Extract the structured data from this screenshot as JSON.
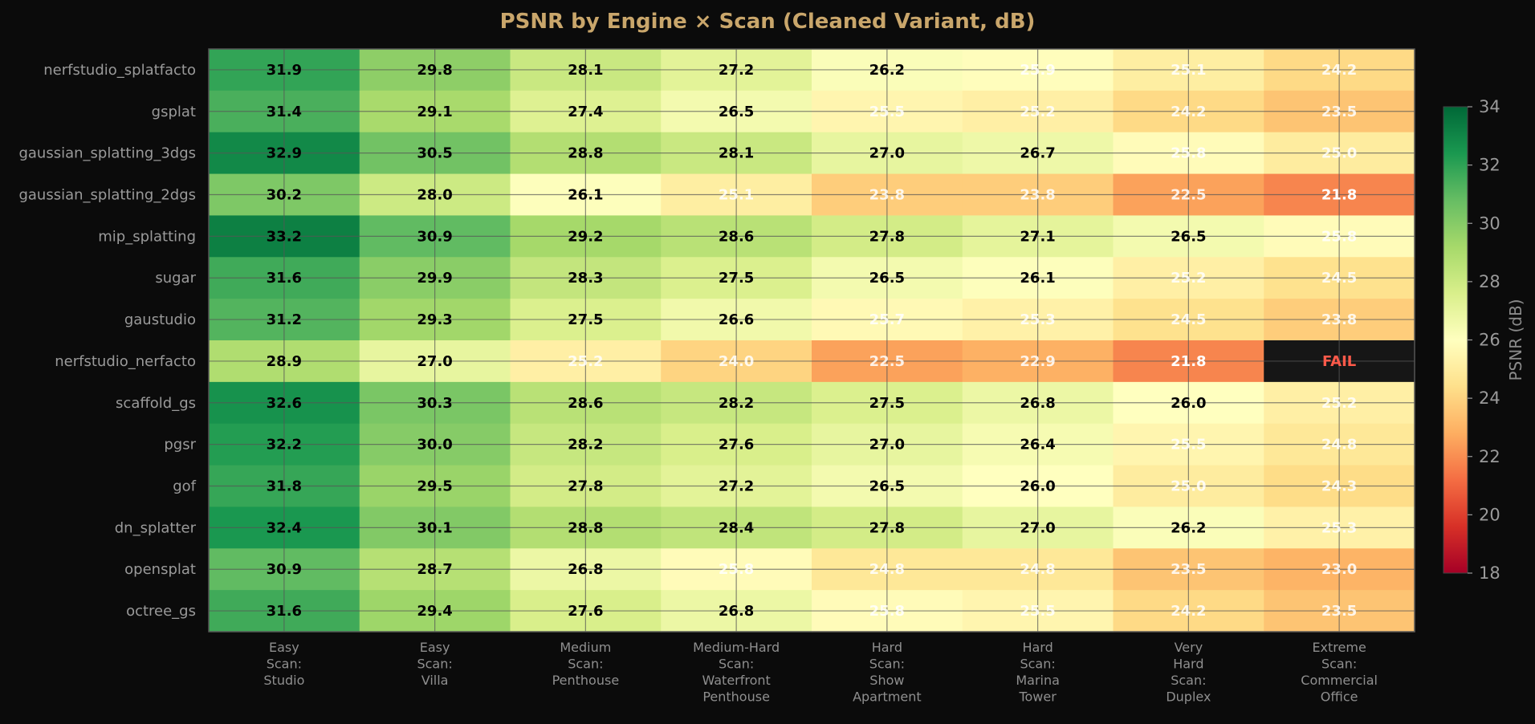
{
  "chart_data": {
    "type": "heatmap",
    "title": "PSNR by Engine × Scan (Cleaned Variant, dB)",
    "rows": [
      "nerfstudio_splatfacto",
      "gsplat",
      "gaussian_splatting_3dgs",
      "gaussian_splatting_2dgs",
      "mip_splatting",
      "sugar",
      "gaustudio",
      "nerfstudio_nerfacto",
      "scaffold_gs",
      "pgsr",
      "gof",
      "dn_splatter",
      "opensplat",
      "octree_gs"
    ],
    "columns": [
      [
        "Easy",
        "Scan:",
        "Studio"
      ],
      [
        "Easy",
        "Scan:",
        "Villa"
      ],
      [
        "Medium",
        "Scan:",
        "Penthouse"
      ],
      [
        "Medium-Hard",
        "Scan:",
        "Waterfront",
        "Penthouse"
      ],
      [
        "Hard",
        "Scan:",
        "Show",
        "Apartment"
      ],
      [
        "Hard",
        "Scan:",
        "Marina",
        "Tower"
      ],
      [
        "Very",
        "Hard",
        "Scan:",
        "Duplex"
      ],
      [
        "Extreme",
        "Scan:",
        "Commercial",
        "Office"
      ]
    ],
    "values": [
      [
        31.9,
        29.8,
        28.1,
        27.2,
        26.2,
        25.9,
        25.1,
        24.2
      ],
      [
        31.4,
        29.1,
        27.4,
        26.5,
        25.5,
        25.2,
        24.2,
        23.5
      ],
      [
        32.9,
        30.5,
        28.8,
        28.1,
        27.0,
        26.7,
        25.8,
        25.0
      ],
      [
        30.2,
        28.0,
        26.1,
        25.1,
        23.8,
        23.8,
        22.5,
        21.8
      ],
      [
        33.2,
        30.9,
        29.2,
        28.6,
        27.8,
        27.1,
        26.5,
        25.8
      ],
      [
        31.6,
        29.9,
        28.3,
        27.5,
        26.5,
        26.1,
        25.2,
        24.5
      ],
      [
        31.2,
        29.3,
        27.5,
        26.6,
        25.7,
        25.3,
        24.5,
        23.8
      ],
      [
        28.9,
        27.0,
        25.2,
        24.0,
        22.5,
        22.9,
        21.8,
        null
      ],
      [
        32.6,
        30.3,
        28.6,
        28.2,
        27.5,
        26.8,
        26.0,
        25.2
      ],
      [
        32.2,
        30.0,
        28.2,
        27.6,
        27.0,
        26.4,
        25.5,
        24.8
      ],
      [
        31.8,
        29.5,
        27.8,
        27.2,
        26.5,
        26.0,
        25.0,
        24.3
      ],
      [
        32.4,
        30.1,
        28.8,
        28.4,
        27.8,
        27.0,
        26.2,
        25.3
      ],
      [
        30.9,
        28.7,
        26.8,
        25.8,
        24.8,
        24.8,
        23.5,
        23.0
      ],
      [
        31.6,
        29.4,
        27.6,
        26.8,
        25.8,
        25.5,
        24.2,
        23.5
      ]
    ],
    "fail_label": "FAIL",
    "fail_color": "#ff5a4a",
    "fail_fill": "#161616",
    "colormap": "RdYlGn",
    "vmin": 18,
    "vmax": 34,
    "colorbar": {
      "label": "PSNR (dB)",
      "ticks": [
        18,
        20,
        22,
        24,
        26,
        28,
        30,
        32,
        34
      ]
    },
    "grid": true,
    "text_threshold_low": 22.4,
    "text_threshold_high": 26.0
  }
}
